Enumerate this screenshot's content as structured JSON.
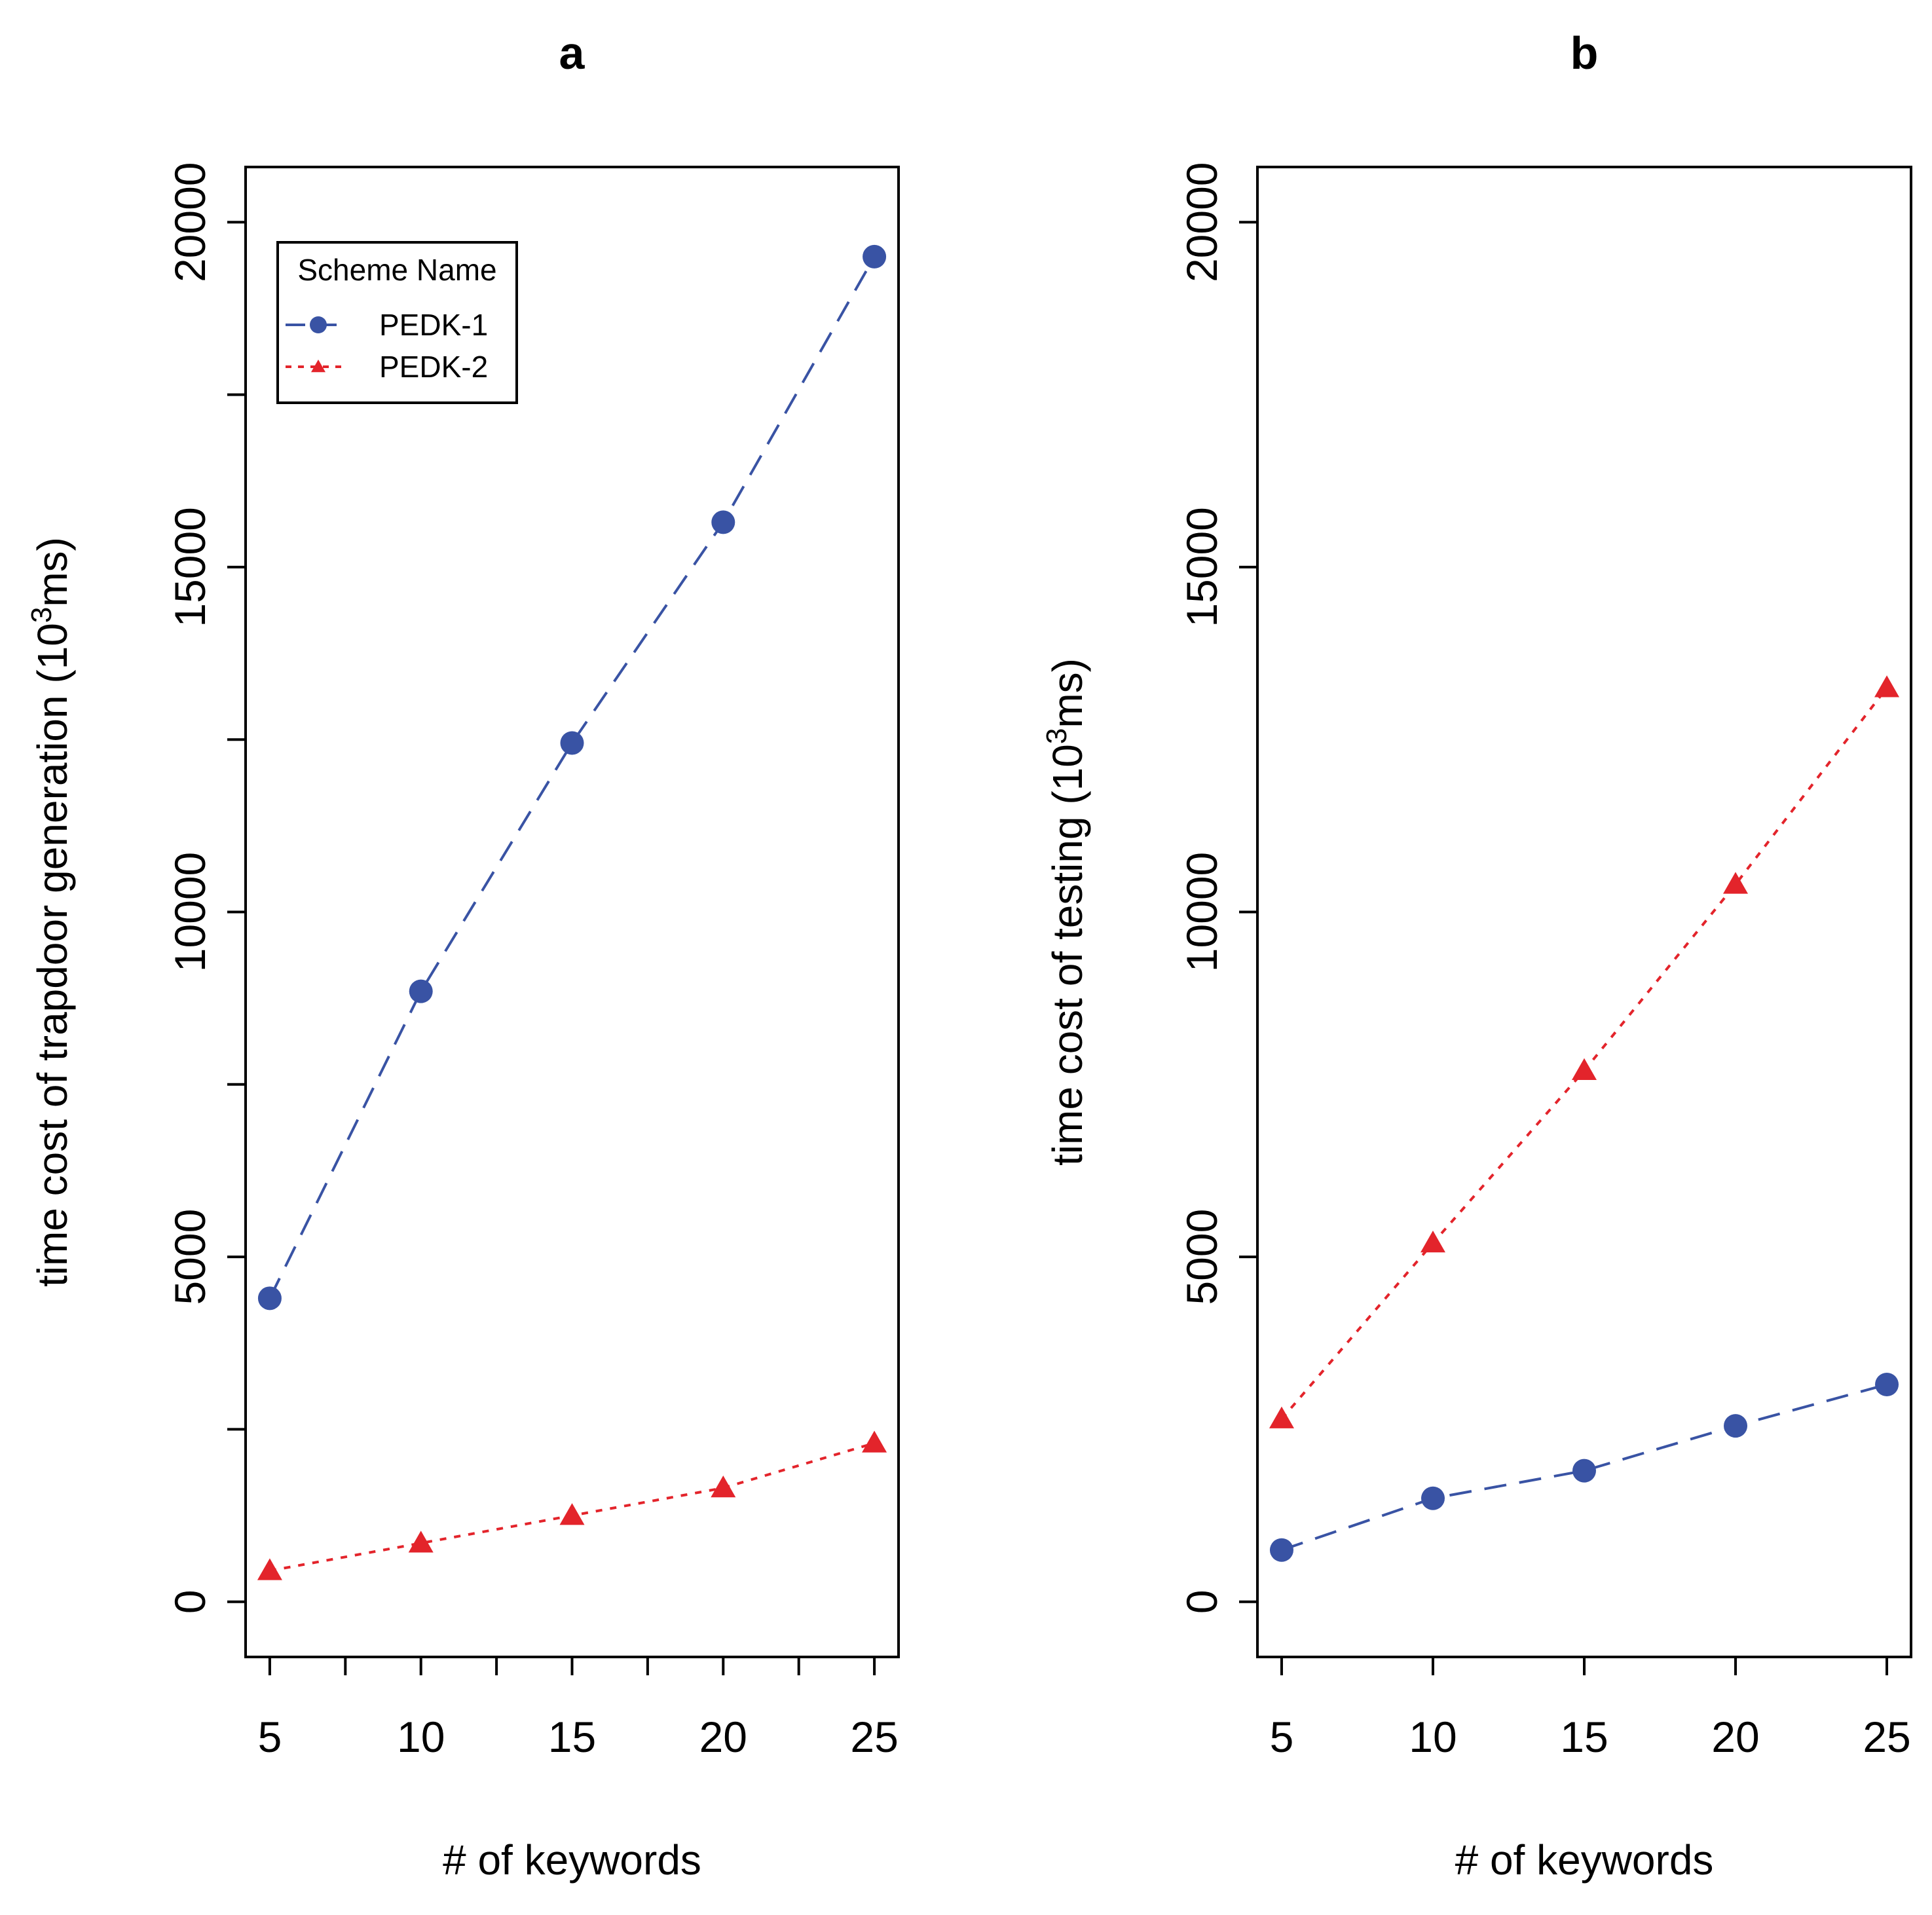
{
  "chart_data": [
    {
      "panel": "a",
      "type": "line",
      "title": "a",
      "xlabel": "# of keywords",
      "ylabel_main": "time cost of trapdoor generation (10",
      "ylabel_sup": "3",
      "ylabel_end": "ms)",
      "x": [
        5,
        10,
        15,
        20,
        25
      ],
      "x_tick_labels": [
        "5",
        "10",
        "15",
        "20",
        "25"
      ],
      "y_ticks": [
        0,
        5000,
        10000,
        15000,
        20000
      ],
      "y_tick_labels": [
        "0",
        "5000",
        "10000",
        "15000",
        "20000"
      ],
      "xlim": [
        4.2,
        25.8
      ],
      "ylim": [
        -800,
        20800
      ],
      "series": [
        {
          "name": "PEDK-1",
          "marker": "circle",
          "line": "dashed",
          "color": "#3953a4",
          "values": [
            4400,
            8850,
            12450,
            15650,
            19500
          ]
        },
        {
          "name": "PEDK-2",
          "marker": "triangle",
          "line": "dotted",
          "color": "#e3242b",
          "values": [
            450,
            850,
            1250,
            1650,
            2300
          ]
        }
      ],
      "legend": {
        "title": "Scheme Name",
        "entries": [
          "PEDK-1",
          "PEDK-2"
        ],
        "placement": "top-left"
      }
    },
    {
      "panel": "b",
      "type": "line",
      "title": "b",
      "xlabel": "# of keywords",
      "ylabel_main": "time cost of testing (10",
      "ylabel_sup": "3",
      "ylabel_end": "ms)",
      "x": [
        5,
        10,
        15,
        20,
        25
      ],
      "x_tick_labels": [
        "5",
        "10",
        "15",
        "20",
        "25"
      ],
      "y_ticks": [
        0,
        5000,
        10000,
        15000,
        20000
      ],
      "y_tick_labels": [
        "0",
        "5000",
        "10000",
        "15000",
        "20000"
      ],
      "xlim": [
        4.2,
        25.8
      ],
      "ylim": [
        -800,
        20800
      ],
      "series": [
        {
          "name": "PEDK-1",
          "marker": "circle",
          "line": "dashed",
          "color": "#3953a4",
          "values": [
            750,
            1500,
            1900,
            2550,
            3150
          ]
        },
        {
          "name": "PEDK-2",
          "marker": "triangle",
          "line": "dotted",
          "color": "#e3242b",
          "values": [
            2650,
            5200,
            7700,
            10400,
            13250
          ]
        }
      ],
      "legend": null
    }
  ]
}
